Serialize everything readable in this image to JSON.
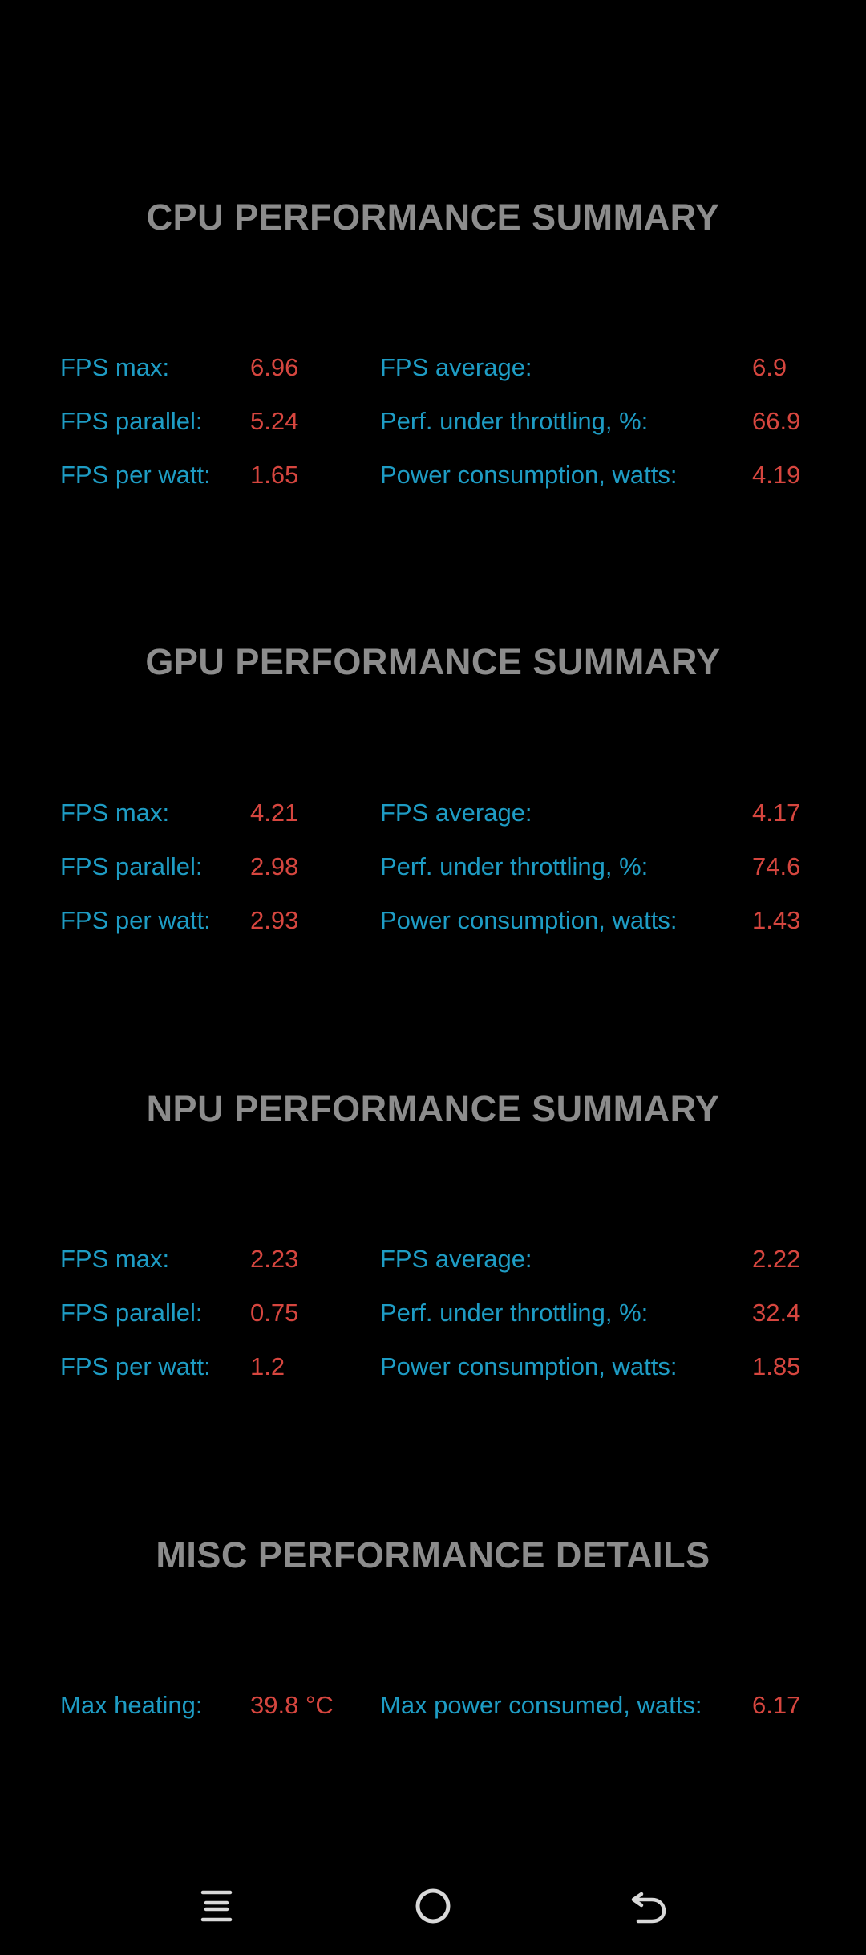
{
  "sections": [
    {
      "title": "CPU PERFORMANCE SUMMARY",
      "rows": [
        {
          "left_label": "FPS max:",
          "left_value": "6.96",
          "right_label": "FPS average:",
          "right_value": "6.9"
        },
        {
          "left_label": "FPS parallel:",
          "left_value": "5.24",
          "right_label": "Perf. under throttling, %:",
          "right_value": "66.9"
        },
        {
          "left_label": "FPS per watt:",
          "left_value": "1.65",
          "right_label": "Power consumption, watts:",
          "right_value": "4.19"
        }
      ]
    },
    {
      "title": "GPU PERFORMANCE SUMMARY",
      "rows": [
        {
          "left_label": "FPS max:",
          "left_value": "4.21",
          "right_label": "FPS average:",
          "right_value": "4.17"
        },
        {
          "left_label": "FPS parallel:",
          "left_value": "2.98",
          "right_label": "Perf. under throttling, %:",
          "right_value": "74.6"
        },
        {
          "left_label": "FPS per watt:",
          "left_value": "2.93",
          "right_label": "Power consumption, watts:",
          "right_value": "1.43"
        }
      ]
    },
    {
      "title": "NPU PERFORMANCE SUMMARY",
      "rows": [
        {
          "left_label": "FPS max:",
          "left_value": "2.23",
          "right_label": "FPS average:",
          "right_value": "2.22"
        },
        {
          "left_label": "FPS parallel:",
          "left_value": "0.75",
          "right_label": "Perf. under throttling, %:",
          "right_value": "32.4"
        },
        {
          "left_label": "FPS per watt:",
          "left_value": "1.2",
          "right_label": "Power consumption, watts:",
          "right_value": "1.85"
        }
      ]
    },
    {
      "title": "MISC PERFORMANCE DETAILS",
      "rows": [
        {
          "left_label": "Max heating:",
          "left_value": "39.8 °C",
          "right_label": "Max power consumed, watts:",
          "right_value": "6.17"
        }
      ]
    }
  ],
  "colors": {
    "background": "#000000",
    "title": "#8c8c8c",
    "label": "#1e9cc4",
    "value": "#d6463f",
    "nav_icon": "#d9d9d9"
  },
  "nav": {
    "icons": [
      "recent-apps-icon",
      "home-icon",
      "back-icon"
    ]
  }
}
